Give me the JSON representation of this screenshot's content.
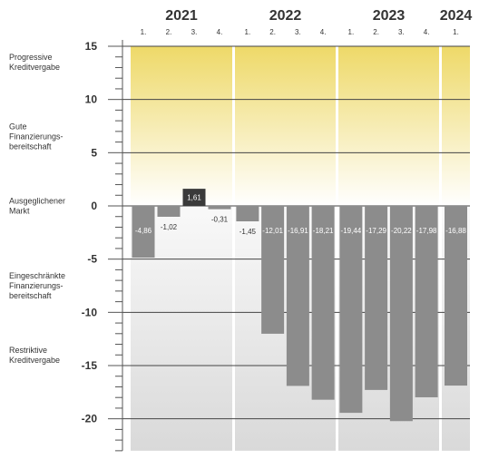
{
  "chart_data": {
    "type": "bar",
    "years": [
      {
        "label": "2021",
        "quarters": [
          "1.",
          "2.",
          "3.",
          "4."
        ]
      },
      {
        "label": "2022",
        "quarters": [
          "1.",
          "2.",
          "3.",
          "4."
        ]
      },
      {
        "label": "2023",
        "quarters": [
          "1.",
          "2.",
          "3.",
          "4."
        ]
      },
      {
        "label": "2024",
        "quarters": [
          "1."
        ]
      }
    ],
    "values": [
      -4.86,
      -1.02,
      1.61,
      -0.31,
      -1.45,
      -12.01,
      -16.91,
      -18.21,
      -19.44,
      -17.29,
      -20.22,
      -17.98,
      -16.88
    ],
    "value_labels": [
      "-4,86",
      "-1,02",
      "1,61",
      "-0,31",
      "-1,45",
      "-12,01",
      "-16,91",
      "-18,21",
      "-19,44",
      "-17,29",
      "-20,22",
      "-17,98",
      "-16,88"
    ],
    "highlight_index": 2,
    "ylim": [
      -23,
      15.5
    ],
    "yticks": [
      15,
      10,
      5,
      0,
      -5,
      -10,
      -15,
      -20
    ],
    "ytick_labels": [
      "15",
      "10",
      "5",
      "0",
      "-5",
      "-10",
      "-15",
      "-20"
    ],
    "zone_labels": [
      {
        "text": "Progressive\nKreditvergabe",
        "value": 13.5
      },
      {
        "text": "Gute\nFinanzierungs-\nbereitschaft",
        "value": 6.5
      },
      {
        "text": "Ausgeglichener\nMarkt",
        "value": 0
      },
      {
        "text": "Eingeschränkte\nFinanzierungs-\nbereitschaft",
        "value": -7.5
      },
      {
        "text": "Restriktive\nKreditvergabe",
        "value": -14
      }
    ],
    "colors": {
      "bar": "#8c8c8c",
      "bar_highlight": "#3a3a3a",
      "positive_top": "#eed968",
      "positive_bottom": "#ffffff",
      "negative_top": "#f9f9f9",
      "negative_bottom": "#d9d9d9",
      "gridline": "#444444"
    }
  }
}
